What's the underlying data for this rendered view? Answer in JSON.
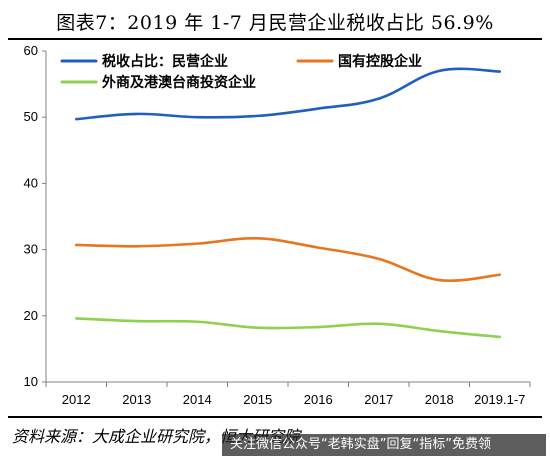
{
  "title": "图表7：2019 年 1-7 月民营企业税收占比 56.9%",
  "source": "资料来源：大成企业研究院，恒大研究院",
  "watermark": "关注微信公众号“老韩实盘”回复“指标”免费领",
  "chart_data": {
    "type": "line",
    "categories": [
      "2012",
      "2013",
      "2014",
      "2015",
      "2016",
      "2017",
      "2018",
      "2019.1-7"
    ],
    "ylim": [
      10,
      60
    ],
    "yticks": [
      10,
      20,
      30,
      40,
      50,
      60
    ],
    "grid": false,
    "legend_placement": "top-left",
    "series": [
      {
        "name": "税收占比：民营企业",
        "color": "#1f5fbf",
        "values": [
          49.7,
          50.5,
          50.0,
          50.2,
          51.3,
          52.8,
          57.0,
          56.9
        ]
      },
      {
        "name": "国有控股企业",
        "color": "#e8761e",
        "values": [
          30.7,
          30.5,
          30.9,
          31.7,
          30.3,
          28.6,
          25.4,
          26.2
        ]
      },
      {
        "name": "外商及港澳台商投资企业",
        "color": "#8fd14f",
        "values": [
          19.6,
          19.2,
          19.1,
          18.2,
          18.3,
          18.8,
          17.7,
          16.8
        ]
      }
    ]
  }
}
